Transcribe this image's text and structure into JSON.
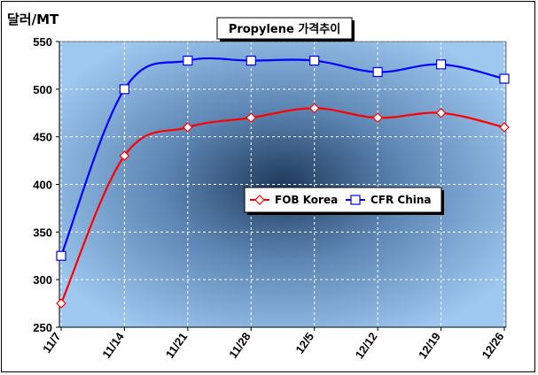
{
  "chart_data": {
    "type": "line",
    "title": "Propylene 가격추이",
    "ylabel": "달러/MT",
    "xlabel": "",
    "categories": [
      "11/7",
      "11/14",
      "11/21",
      "11/28",
      "12/5",
      "12/12",
      "12/19",
      "12/26"
    ],
    "ylim": [
      250,
      550
    ],
    "yticks": [
      250,
      300,
      350,
      400,
      450,
      500,
      550
    ],
    "grid": true,
    "legend": "center-right",
    "series": [
      {
        "name": "FOB Korea",
        "color": "#ff0000",
        "marker": "diamond",
        "values": [
          275,
          430,
          460,
          470,
          480,
          470,
          475,
          460
        ]
      },
      {
        "name": "CFR China",
        "color": "#0000ff",
        "marker": "square",
        "values": [
          325,
          500,
          530,
          530,
          530,
          518,
          526,
          511
        ]
      }
    ]
  }
}
